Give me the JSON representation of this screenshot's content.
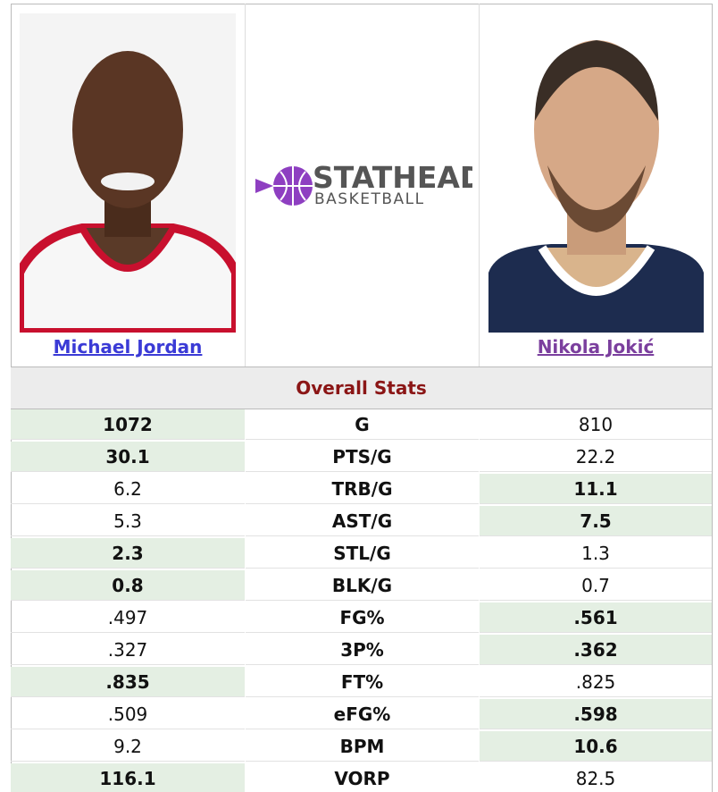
{
  "players": [
    {
      "name": "Michael Jordan"
    },
    {
      "name": "Nikola Jokić"
    }
  ],
  "logo": {
    "brand": "STATHEAD",
    "sub": "BASKETBALL"
  },
  "section_title": "Overall Stats",
  "rows": [
    {
      "stat": "G",
      "left": "1072",
      "right": "810",
      "leader": "left"
    },
    {
      "stat": "PTS/G",
      "left": "30.1",
      "right": "22.2",
      "leader": "left"
    },
    {
      "stat": "TRB/G",
      "left": "6.2",
      "right": "11.1",
      "leader": "right"
    },
    {
      "stat": "AST/G",
      "left": "5.3",
      "right": "7.5",
      "leader": "right"
    },
    {
      "stat": "STL/G",
      "left": "2.3",
      "right": "1.3",
      "leader": "left"
    },
    {
      "stat": "BLK/G",
      "left": "0.8",
      "right": "0.7",
      "leader": "left"
    },
    {
      "stat": "FG%",
      "left": ".497",
      "right": ".561",
      "leader": "right"
    },
    {
      "stat": "3P%",
      "left": ".327",
      "right": ".362",
      "leader": "right"
    },
    {
      "stat": "FT%",
      "left": ".835",
      "right": ".825",
      "leader": "left"
    },
    {
      "stat": "eFG%",
      "left": ".509",
      "right": ".598",
      "leader": "right"
    },
    {
      "stat": "BPM",
      "left": "9.2",
      "right": "10.6",
      "leader": "right"
    },
    {
      "stat": "VORP",
      "left": "116.1",
      "right": "82.5",
      "leader": "left"
    }
  ]
}
